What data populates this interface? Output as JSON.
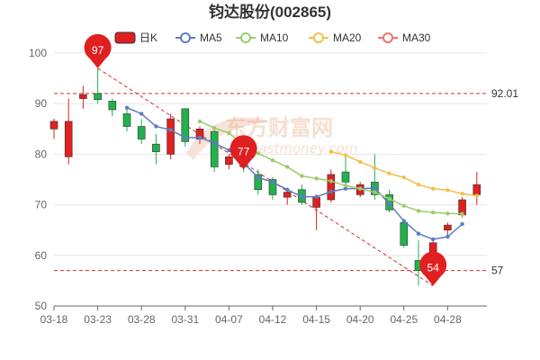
{
  "chart_data": {
    "type": "candlestick",
    "title": "钧达股份(002865)",
    "legend": [
      {
        "label": "日K",
        "color": "#e02020",
        "kind": "candle"
      },
      {
        "label": "MA5",
        "color": "#5b7ec2",
        "kind": "line"
      },
      {
        "label": "MA10",
        "color": "#9acd6b",
        "kind": "line"
      },
      {
        "label": "MA20",
        "color": "#f0c050",
        "kind": "line"
      },
      {
        "label": "MA30",
        "color": "#f07070",
        "kind": "line"
      }
    ],
    "ylim": [
      50,
      100
    ],
    "yticks": [
      50,
      60,
      70,
      80,
      90,
      100
    ],
    "xtick_labels": [
      "03-18",
      "03-23",
      "03-28",
      "03-31",
      "04-07",
      "04-12",
      "04-15",
      "04-20",
      "04-25",
      "04-28"
    ],
    "xtick_positions": [
      0,
      3,
      6,
      9,
      12,
      15,
      18,
      21,
      24,
      27
    ],
    "up_color": "#e02020",
    "down_color": "#22b14c",
    "candles": [
      {
        "o": 85,
        "c": 86.5,
        "h": 87,
        "l": 83
      },
      {
        "o": 79.5,
        "c": 86.5,
        "h": 91,
        "l": 78
      },
      {
        "o": 91,
        "c": 91.8,
        "h": 93.5,
        "l": 89
      },
      {
        "o": 92,
        "c": 90.8,
        "h": 97,
        "l": 90
      },
      {
        "o": 90.5,
        "c": 88.8,
        "h": 91,
        "l": 87.5
      },
      {
        "o": 88,
        "c": 85.5,
        "h": 89,
        "l": 84.5
      },
      {
        "o": 85.5,
        "c": 83,
        "h": 87,
        "l": 82
      },
      {
        "o": 82,
        "c": 80.5,
        "h": 84,
        "l": 78
      },
      {
        "o": 80,
        "c": 87,
        "h": 88,
        "l": 79
      },
      {
        "o": 89,
        "c": 82.5,
        "h": 89,
        "l": 81.5
      },
      {
        "o": 83,
        "c": 85,
        "h": 85.5,
        "l": 82
      },
      {
        "o": 84.5,
        "c": 77.5,
        "h": 85,
        "l": 76.5
      },
      {
        "o": 78,
        "c": 79.5,
        "h": 80,
        "l": 77
      },
      {
        "o": 80,
        "c": 77.5,
        "h": 82,
        "l": 76.5
      },
      {
        "o": 76,
        "c": 73,
        "h": 77,
        "l": 72
      },
      {
        "o": 75,
        "c": 72,
        "h": 75.5,
        "l": 71
      },
      {
        "o": 71.5,
        "c": 72.5,
        "h": 73,
        "l": 70
      },
      {
        "o": 73,
        "c": 70.5,
        "h": 74,
        "l": 70
      },
      {
        "o": 69.5,
        "c": 71.5,
        "h": 72,
        "l": 65
      },
      {
        "o": 71,
        "c": 76,
        "h": 77,
        "l": 70.5
      },
      {
        "o": 76.5,
        "c": 74.5,
        "h": 80,
        "l": 74
      },
      {
        "o": 72,
        "c": 74,
        "h": 74.5,
        "l": 71.5
      },
      {
        "o": 74.5,
        "c": 72,
        "h": 80,
        "l": 71
      },
      {
        "o": 72,
        "c": 69,
        "h": 73,
        "l": 68.5
      },
      {
        "o": 66.5,
        "c": 62,
        "h": 67,
        "l": 61.5
      },
      {
        "o": 59,
        "c": 57,
        "h": 63,
        "l": 54
      },
      {
        "o": 60.5,
        "c": 62.5,
        "h": 63,
        "l": 57
      },
      {
        "o": 65,
        "c": 66,
        "h": 66.5,
        "l": 64
      },
      {
        "o": 68,
        "c": 71,
        "h": 71.5,
        "l": 67.5
      },
      {
        "o": 72,
        "c": 74,
        "h": 76.5,
        "l": 70
      }
    ],
    "ma": [
      {
        "name": "MA5",
        "color": "#5b7ec2",
        "start": 5,
        "values": [
          89.2,
          88,
          85.5,
          84.8,
          83.3,
          83.3,
          82.2,
          80.8,
          78.3,
          75.4,
          74.5,
          73,
          71.6,
          71.6,
          72.6,
          73.2,
          73.2,
          73.3,
          70.2,
          66.8,
          64.3,
          63.2,
          63.7,
          66.2
        ]
      },
      {
        "name": "MA10",
        "color": "#9acd6b",
        "start": 10,
        "values": [
          86.5,
          85.2,
          84.2,
          81.7,
          80.2,
          78.8,
          77.5,
          75.7,
          75.2,
          74.7,
          73.8,
          73.2,
          72.5,
          71.2,
          69.8,
          68.8,
          68.5,
          68.3,
          68.2
        ]
      },
      {
        "name": "MA20",
        "color": "#f0c050",
        "start": 19,
        "values": [
          80.5,
          79.8,
          78.5,
          77.3,
          76.2,
          75.4,
          74,
          73.2,
          72.9,
          72.2,
          71.8
        ]
      }
    ],
    "ref_lines": [
      {
        "value": 92.01,
        "label": "92.01"
      },
      {
        "value": 57,
        "label": "57"
      }
    ],
    "trend_line": {
      "from_index": 3,
      "from_value": 97,
      "to_index": 26,
      "to_value": 54
    },
    "pins": [
      {
        "index": 3,
        "value": 97,
        "label": "97"
      },
      {
        "index": 13,
        "value": 77,
        "label": "77"
      },
      {
        "index": 26,
        "value": 54,
        "label": "54"
      }
    ],
    "watermark": {
      "main": "东方财富网",
      "sub": "Eastmoney.com"
    }
  }
}
